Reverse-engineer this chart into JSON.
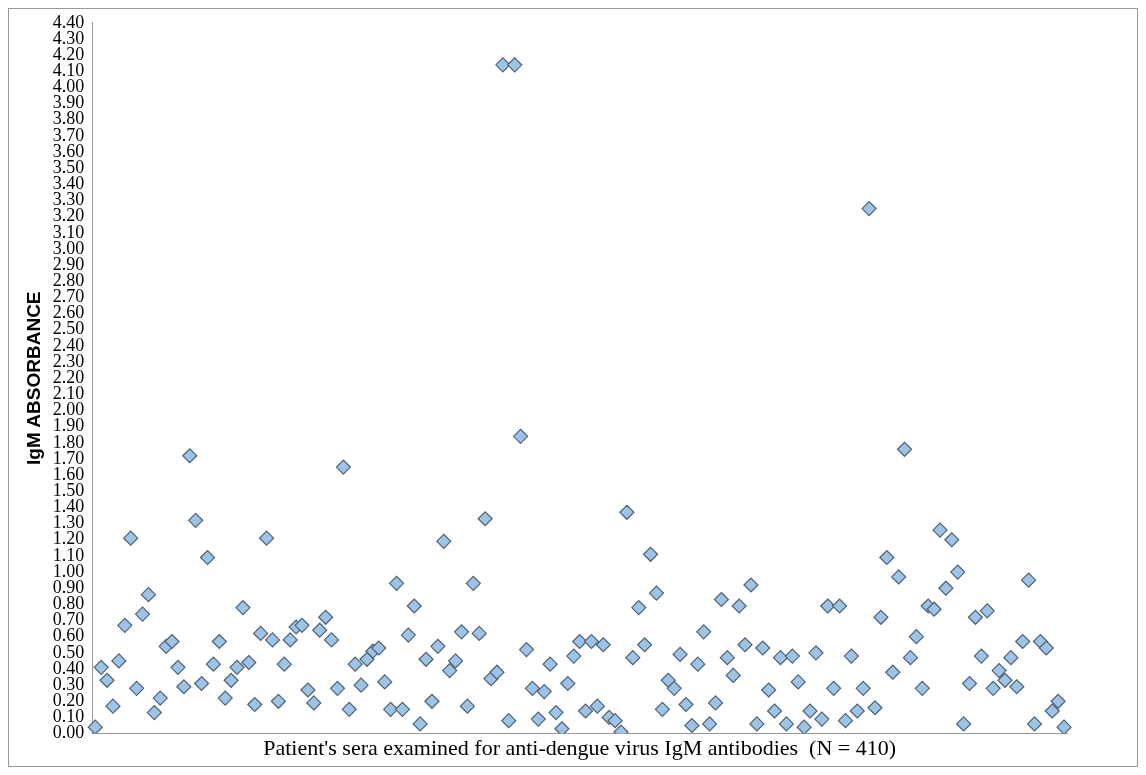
{
  "chart_data": {
    "type": "scatter",
    "xlabel": "Patient's sera examined for anti-dengue virus IgM antibodies  (N = 410)",
    "ylabel": "IgM ABSORBANCE",
    "marker": "diamond",
    "color": "#9dc3e6",
    "grid": false,
    "legend": false,
    "categories": [
      null,
      null,
      null,
      null,
      null,
      null,
      null,
      null,
      null,
      null,
      null,
      null,
      null,
      null,
      null,
      null,
      null,
      null,
      null,
      null,
      null,
      null,
      null,
      null,
      null,
      null,
      null,
      null,
      null,
      null,
      null,
      null,
      null,
      null,
      null,
      null,
      null,
      null,
      null,
      null,
      null,
      null,
      null,
      null,
      null,
      null,
      null,
      null,
      null,
      null,
      null,
      null,
      null,
      null,
      null,
      null,
      null,
      null,
      null,
      null,
      null,
      null,
      null,
      null,
      null,
      null,
      null,
      null,
      null,
      null,
      null,
      null,
      null,
      null,
      null,
      null,
      null,
      null,
      null,
      null,
      null,
      null,
      null,
      null,
      null,
      null,
      null,
      null,
      null,
      null,
      null,
      null,
      null,
      null,
      null,
      null,
      null,
      null,
      null,
      null,
      null,
      null,
      null,
      null,
      null,
      null,
      null,
      null,
      null,
      null,
      null,
      null,
      null,
      null,
      null,
      null,
      null,
      null,
      null,
      null,
      null,
      null,
      null,
      null,
      null,
      null,
      null,
      null,
      null,
      null,
      null,
      null,
      null,
      null,
      null,
      null,
      null,
      null,
      null,
      null,
      null,
      null,
      null,
      null,
      null,
      null,
      null,
      null,
      null,
      null,
      null,
      null,
      null,
      null,
      null,
      null,
      null,
      null,
      null,
      null,
      null,
      null,
      null,
      null,
      null
    ],
    "values": [
      0.04,
      0.41,
      0.33,
      0.17,
      0.45,
      0.67,
      1.21,
      0.28,
      0.74,
      0.86,
      0.13,
      0.22,
      0.54,
      0.57,
      0.41,
      0.29,
      1.72,
      1.32,
      0.31,
      1.09,
      0.43,
      0.57,
      0.22,
      0.33,
      0.41,
      0.78,
      0.44,
      0.18,
      0.62,
      1.21,
      0.58,
      0.2,
      0.43,
      0.58,
      0.66,
      0.67,
      0.27,
      0.19,
      0.64,
      0.72,
      0.58,
      0.28,
      1.65,
      0.15,
      0.43,
      0.3,
      0.46,
      0.51,
      0.53,
      0.32,
      0.15,
      0.93,
      0.15,
      0.61,
      0.79,
      0.06,
      0.46,
      0.2,
      0.54,
      1.19,
      0.39,
      0.45,
      0.63,
      0.17,
      0.93,
      0.62,
      1.33,
      0.34,
      0.38,
      4.14,
      0.08,
      4.14,
      1.84,
      0.52,
      0.28,
      0.09,
      0.26,
      0.43,
      0.13,
      0.03,
      0.31,
      0.48,
      0.57,
      0.14,
      0.57,
      0.17,
      0.55,
      0.1,
      0.08,
      0.01,
      1.37,
      0.47,
      0.78,
      0.55,
      1.11,
      0.87,
      0.15,
      0.33,
      0.28,
      0.49,
      0.18,
      0.05,
      0.43,
      0.63,
      0.06,
      0.19,
      0.83,
      0.47,
      0.36,
      0.79,
      0.55,
      0.92,
      0.06,
      0.53,
      0.27,
      0.14,
      0.47,
      0.06,
      0.48,
      0.32,
      0.04,
      0.14,
      0.5,
      0.09,
      0.79,
      0.28,
      0.79,
      0.08,
      0.48,
      0.14,
      0.28,
      3.25,
      0.16,
      0.72,
      1.09,
      0.38,
      0.97,
      1.76,
      0.47,
      0.6,
      0.28,
      0.79,
      0.77,
      1.26,
      0.9,
      1.2,
      1.0,
      0.06,
      0.31,
      0.72,
      0.48,
      0.76,
      0.28,
      0.39,
      0.33,
      0.47,
      0.29,
      0.57,
      0.95,
      0.06,
      0.57,
      0.53,
      0.14,
      0.2,
      0.04
    ],
    "ylim": [
      0,
      4.4
    ],
    "yticks": [
      {
        "value": 0,
        "label": "0.00"
      },
      {
        "value": 0.1,
        "label": "0.10"
      },
      {
        "value": 0.2,
        "label": "0.20"
      },
      {
        "value": 0.3,
        "label": "0.30"
      },
      {
        "value": 0.4,
        "label": "0.40"
      },
      {
        "value": 0.5,
        "label": "0.50"
      },
      {
        "value": 0.6,
        "label": "0.60"
      },
      {
        "value": 0.7,
        "label": "0.70"
      },
      {
        "value": 0.8,
        "label": "0.80"
      },
      {
        "value": 0.9,
        "label": "0.90"
      },
      {
        "value": 1,
        "label": "1.00"
      },
      {
        "value": 1.1,
        "label": "1.10"
      },
      {
        "value": 1.2,
        "label": "1.20"
      },
      {
        "value": 1.3,
        "label": "1.30"
      },
      {
        "value": 1.4,
        "label": "1.40"
      },
      {
        "value": 1.5,
        "label": "1.50"
      },
      {
        "value": 1.6,
        "label": "1.60"
      },
      {
        "value": 1.7,
        "label": "1.70"
      },
      {
        "value": 1.8,
        "label": "1.80"
      },
      {
        "value": 1.9,
        "label": "1.90"
      },
      {
        "value": 2,
        "label": "2.00"
      },
      {
        "value": 2.1,
        "label": "2.10"
      },
      {
        "value": 2.2,
        "label": "2.20"
      },
      {
        "value": 2.3,
        "label": "2.30"
      },
      {
        "value": 2.4,
        "label": "2.40"
      },
      {
        "value": 2.5,
        "label": "2.50"
      },
      {
        "value": 2.6,
        "label": "2.60"
      },
      {
        "value": 2.7,
        "label": "2.70"
      },
      {
        "value": 2.8,
        "label": "2.80"
      },
      {
        "value": 2.9,
        "label": "2.90"
      },
      {
        "value": 3,
        "label": "3.00"
      },
      {
        "value": 3.1,
        "label": "3.10"
      },
      {
        "value": 3.2,
        "label": "3.20"
      },
      {
        "value": 3.3,
        "label": "3.30"
      },
      {
        "value": 3.4,
        "label": "3.40"
      },
      {
        "value": 3.5,
        "label": "3.50"
      },
      {
        "value": 3.6,
        "label": "3.60"
      },
      {
        "value": 3.7,
        "label": "3.70"
      },
      {
        "value": 3.8,
        "label": "3.80"
      },
      {
        "value": 3.9,
        "label": "3.90"
      },
      {
        "value": 4,
        "label": "4.00"
      },
      {
        "value": 4.1,
        "label": "4.10"
      },
      {
        "value": 4.2,
        "label": "4.20"
      },
      {
        "value": 4.3,
        "label": "4.30"
      },
      {
        "value": 4.4,
        "label": "4.40"
      }
    ]
  }
}
